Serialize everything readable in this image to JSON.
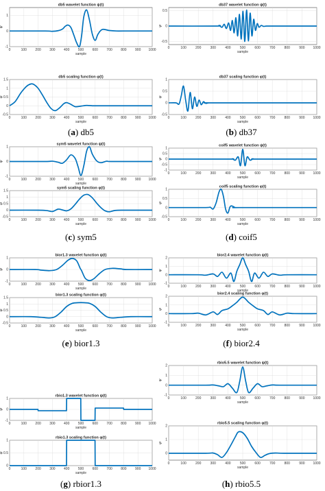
{
  "figure": {
    "captions": [
      {
        "letter": "a",
        "text": " db5"
      },
      {
        "letter": "b",
        "text": " db37"
      },
      {
        "letter": "c",
        "text": " sym5"
      },
      {
        "letter": "d",
        "text": " coif5"
      },
      {
        "letter": "e",
        "text": " bior1.3"
      },
      {
        "letter": "f",
        "text": " bior2.4"
      },
      {
        "letter": "g",
        "text": " rbior1.3"
      },
      {
        "letter": "h",
        "text": " rbio5.5"
      }
    ]
  },
  "colors": {
    "curve": "#0072bd",
    "grid": "#d9d9d9"
  },
  "chart_data": [
    {
      "id": "db5-wavelet",
      "type": "line",
      "title": "db5 wavelet function ψ(t)",
      "xlabel": "sample",
      "ylabel": "ψ",
      "xlim": [
        0,
        1000
      ],
      "ylim": [
        -1,
        1.5
      ],
      "xticks": [
        0,
        100,
        200,
        300,
        400,
        500,
        600,
        700,
        800,
        900,
        1000
      ],
      "yticks": [
        -1,
        0,
        1
      ],
      "x": [
        0,
        250,
        300,
        340,
        370,
        390,
        410,
        430,
        450,
        470,
        490,
        505,
        520,
        540,
        560,
        580,
        600,
        620,
        650,
        700,
        750,
        800,
        1000
      ],
      "y": [
        0,
        0,
        -0.02,
        0.02,
        0.12,
        0.3,
        0.38,
        0.22,
        -0.25,
        -0.75,
        -1.0,
        -0.3,
        0.9,
        1.35,
        0.7,
        -0.2,
        -0.6,
        -0.2,
        0.1,
        0.03,
        0,
        0,
        0
      ]
    },
    {
      "id": "db5-scaling",
      "type": "line",
      "title": "db5 scaling function φ(t)",
      "xlabel": "sample",
      "ylabel": "φ",
      "xlim": [
        0,
        1000
      ],
      "ylim": [
        -0.5,
        1.5
      ],
      "xticks": [
        0,
        100,
        200,
        300,
        400,
        500,
        600,
        700,
        800,
        900,
        1000
      ],
      "yticks": [
        -0.5,
        0,
        0.5,
        1,
        1.5
      ],
      "x": [
        0,
        40,
        80,
        120,
        150,
        170,
        200,
        230,
        260,
        290,
        320,
        350,
        380,
        400,
        430,
        460,
        500,
        540,
        580,
        620,
        700,
        1000
      ],
      "y": [
        0,
        0.25,
        0.75,
        1.12,
        1.25,
        1.22,
        1.0,
        0.62,
        0.2,
        -0.15,
        -0.28,
        -0.12,
        0.12,
        0.18,
        0.08,
        -0.05,
        -0.02,
        0.02,
        0,
        0,
        0,
        0
      ]
    },
    {
      "id": "db37-wavelet",
      "type": "line",
      "title": "db37 wavelet function ψ(t)",
      "xlabel": "sample",
      "ylabel": "ψ",
      "xlim": [
        0,
        1000
      ],
      "ylim": [
        -0.6,
        0.6
      ],
      "xticks": [
        0,
        100,
        200,
        300,
        400,
        500,
        600,
        700,
        800,
        900,
        1000
      ],
      "yticks": [
        -0.5,
        0,
        0.5
      ],
      "x": [
        0,
        320,
        340,
        360,
        375,
        390,
        405,
        418,
        430,
        442,
        454,
        466,
        478,
        490,
        502,
        514,
        526,
        538,
        550,
        562,
        574,
        586,
        598,
        610,
        625,
        640,
        660,
        700,
        1000
      ],
      "y": [
        0,
        0,
        0.02,
        -0.04,
        0.06,
        -0.08,
        0.1,
        -0.14,
        0.18,
        -0.22,
        0.27,
        -0.32,
        0.38,
        -0.42,
        0.48,
        -0.5,
        0.52,
        -0.48,
        0.42,
        -0.32,
        0.22,
        -0.14,
        0.08,
        -0.04,
        0.02,
        -0.01,
        0,
        0,
        0
      ]
    },
    {
      "id": "db37-scaling",
      "type": "line",
      "title": "db37 scaling function φ(t)",
      "xlabel": "sample",
      "ylabel": "φ",
      "xlim": [
        0,
        1000
      ],
      "ylim": [
        -0.5,
        1
      ],
      "xticks": [
        0,
        100,
        200,
        300,
        400,
        500,
        600,
        700,
        800,
        900,
        1000
      ],
      "yticks": [
        -0.5,
        0,
        0.5,
        1
      ],
      "x": [
        0,
        50,
        70,
        85,
        100,
        115,
        130,
        145,
        160,
        175,
        190,
        205,
        220,
        235,
        250,
        270,
        300,
        1000
      ],
      "y": [
        0,
        0,
        -0.05,
        0.3,
        0.72,
        0.1,
        -0.35,
        0.45,
        -0.25,
        0.25,
        -0.15,
        0.12,
        -0.08,
        0.05,
        -0.02,
        0,
        0,
        0
      ]
    },
    {
      "id": "sym5-wavelet",
      "type": "line",
      "title": "sym5 wavelet function ψ(t)",
      "xlabel": "sample",
      "ylabel": "ψ",
      "xlim": [
        0,
        1000
      ],
      "ylim": [
        -1,
        1
      ],
      "xticks": [
        0,
        100,
        200,
        300,
        400,
        500,
        600,
        700,
        800,
        900,
        1000
      ],
      "yticks": [
        -1,
        0,
        1
      ],
      "x": [
        0,
        250,
        300,
        340,
        370,
        400,
        430,
        460,
        480,
        500,
        520,
        540,
        560,
        580,
        610,
        640,
        680,
        720,
        1000
      ],
      "y": [
        0,
        0,
        0.02,
        -0.05,
        -0.12,
        0.12,
        0.45,
        0.2,
        -0.35,
        -0.95,
        -0.3,
        0.7,
        1.0,
        0.5,
        0.05,
        -0.08,
        0.02,
        0,
        0
      ]
    },
    {
      "id": "sym5-scaling",
      "type": "line",
      "title": "sym5 scaling function φ(t)",
      "xlabel": "sample",
      "ylabel": "φ",
      "xlim": [
        0,
        1000
      ],
      "ylim": [
        -0.5,
        1.5
      ],
      "xticks": [
        0,
        100,
        200,
        300,
        400,
        500,
        600,
        700,
        800,
        900,
        1000
      ],
      "yticks": [
        -0.5,
        0,
        0.5,
        1,
        1.5
      ],
      "x": [
        0,
        200,
        260,
        300,
        340,
        370,
        400,
        430,
        460,
        490,
        520,
        550,
        580,
        610,
        640,
        670,
        700,
        740,
        800,
        1000
      ],
      "y": [
        0,
        0,
        -0.03,
        -0.1,
        0.08,
        0.02,
        -0.05,
        0.1,
        0.45,
        0.85,
        1.15,
        1.2,
        0.95,
        0.55,
        0.2,
        -0.05,
        -0.12,
        -0.02,
        0,
        0
      ]
    },
    {
      "id": "coif5-wavelet",
      "type": "line",
      "title": "coif5 wavelet function ψ(t)",
      "xlabel": "sample",
      "ylabel": "ψ",
      "xlim": [
        0,
        1000
      ],
      "ylim": [
        -1,
        1
      ],
      "xticks": [
        0,
        100,
        200,
        300,
        400,
        500,
        600,
        700,
        800,
        900,
        1000
      ],
      "yticks": [
        -1,
        -0.5,
        0,
        0.5,
        1
      ],
      "x": [
        0,
        400,
        430,
        450,
        470,
        485,
        500,
        515,
        530,
        550,
        570,
        600,
        1000
      ],
      "y": [
        0,
        0,
        0.02,
        -0.1,
        0.2,
        -0.6,
        0.9,
        -0.6,
        0.2,
        -0.1,
        0.02,
        0,
        0
      ]
    },
    {
      "id": "coif5-scaling",
      "type": "line",
      "title": "coif5 scaling function φ(t)",
      "xlabel": "sample",
      "ylabel": "φ",
      "xlim": [
        0,
        1000
      ],
      "ylim": [
        -0.5,
        1
      ],
      "xticks": [
        0,
        100,
        200,
        300,
        400,
        500,
        600,
        700,
        800,
        900,
        1000
      ],
      "yticks": [
        -0.5,
        0,
        0.5,
        1
      ],
      "x": [
        0,
        250,
        280,
        300,
        320,
        340,
        355,
        370,
        385,
        400,
        415,
        430,
        450,
        480,
        1000
      ],
      "y": [
        0,
        0,
        0.02,
        -0.08,
        0.25,
        0.85,
        1.0,
        0.6,
        -0.1,
        -0.3,
        0.05,
        0.08,
        0,
        0,
        0
      ]
    },
    {
      "id": "bior13-wavelet",
      "type": "line",
      "title": "bior1.3 wavelet function ψ(t)",
      "xlabel": "sample",
      "ylabel": "ψ",
      "xlim": [
        0,
        1000
      ],
      "ylim": [
        -1,
        1
      ],
      "xticks": [
        0,
        100,
        200,
        300,
        400,
        500,
        600,
        700,
        800,
        900,
        1000
      ],
      "yticks": [
        -1,
        0,
        1
      ],
      "x": [
        0,
        180,
        220,
        280,
        330,
        370,
        410,
        440,
        470,
        495,
        500,
        505,
        530,
        560,
        590,
        630,
        670,
        720,
        780,
        820,
        1000
      ],
      "y": [
        0,
        0,
        -0.05,
        -0.1,
        0.0,
        0.35,
        0.8,
        0.95,
        0.75,
        0.1,
        0,
        -0.1,
        -0.75,
        -0.95,
        -0.8,
        -0.35,
        0.0,
        0.1,
        0.05,
        0,
        0
      ]
    },
    {
      "id": "bior13-scaling",
      "type": "line",
      "title": "bior1.3 scaling function φ(t)",
      "xlabel": "sample",
      "ylabel": "φ",
      "xlim": [
        0,
        1000
      ],
      "ylim": [
        -0.5,
        1.5
      ],
      "xticks": [
        0,
        100,
        200,
        300,
        400,
        500,
        600,
        700,
        800,
        900,
        1000
      ],
      "yticks": [
        -0.5,
        0,
        0.5,
        1,
        1.5
      ],
      "x": [
        0,
        150,
        220,
        280,
        320,
        360,
        400,
        440,
        480,
        520,
        560,
        600,
        640,
        680,
        720,
        780,
        850,
        1000
      ],
      "y": [
        0,
        0,
        -0.05,
        -0.1,
        0.0,
        0.35,
        0.8,
        1.05,
        1.1,
        1.1,
        1.05,
        0.8,
        0.35,
        0.0,
        -0.1,
        -0.05,
        0,
        0
      ]
    },
    {
      "id": "bior24-wavelet",
      "type": "line",
      "title": "bior2.4 wavelet function ψ(t)",
      "xlabel": "sample",
      "ylabel": "ψ",
      "xlim": [
        0,
        1000
      ],
      "ylim": [
        -1,
        2
      ],
      "xticks": [
        0,
        100,
        200,
        300,
        400,
        500,
        600,
        700,
        800,
        900,
        1000
      ],
      "yticks": [
        -1,
        0,
        1,
        2
      ],
      "x": [
        0,
        200,
        250,
        300,
        330,
        360,
        390,
        420,
        440,
        460,
        480,
        500,
        520,
        540,
        560,
        580,
        610,
        640,
        670,
        700,
        750,
        800,
        1000
      ],
      "y": [
        0,
        0,
        -0.05,
        0.1,
        -0.2,
        0.3,
        -0.4,
        0.2,
        -0.8,
        0.4,
        1.2,
        2.0,
        1.2,
        0.4,
        -0.8,
        0.2,
        -0.4,
        0.3,
        -0.2,
        0.1,
        -0.05,
        0,
        0
      ]
    },
    {
      "id": "bior24-scaling",
      "type": "line",
      "title": "bior2.4 scaling function φ(t)",
      "xlabel": "sample",
      "ylabel": "φ",
      "xlim": [
        0,
        1000
      ],
      "ylim": [
        -1,
        2
      ],
      "xticks": [
        0,
        100,
        200,
        300,
        400,
        500,
        600,
        700,
        800,
        900,
        1000
      ],
      "yticks": [
        -1,
        0,
        1,
        2
      ],
      "x": [
        0,
        150,
        200,
        250,
        300,
        330,
        360,
        400,
        430,
        460,
        500,
        540,
        570,
        600,
        640,
        670,
        700,
        750,
        800,
        850,
        1000
      ],
      "y": [
        0,
        0,
        0.05,
        -0.15,
        0.2,
        -0.1,
        0.35,
        0.55,
        0.9,
        1.3,
        1.9,
        1.3,
        0.9,
        0.55,
        0.35,
        -0.1,
        0.2,
        -0.15,
        0.05,
        0,
        0
      ]
    },
    {
      "id": "rbio13-wavelet",
      "type": "line",
      "title": "rbio1.3 wavelet function ψ(t)",
      "xlabel": "sample",
      "ylabel": "ψ",
      "xlim": [
        0,
        1000
      ],
      "ylim": [
        -1,
        1
      ],
      "xticks": [
        0,
        100,
        200,
        300,
        400,
        500,
        600,
        700,
        800,
        900,
        1000
      ],
      "yticks": [
        -1,
        0,
        1
      ],
      "x": [
        0,
        199,
        200,
        399,
        400,
        499,
        500,
        599,
        600,
        799,
        800,
        1000
      ],
      "y": [
        0,
        0,
        -0.12,
        -0.12,
        1,
        1,
        -1,
        -1,
        0.12,
        0.12,
        0,
        0
      ]
    },
    {
      "id": "rbio13-scaling",
      "type": "line",
      "title": "rbio1.3 scaling function φ(t)",
      "xlabel": "sample",
      "ylabel": "φ",
      "xlim": [
        0,
        1000
      ],
      "ylim": [
        0,
        1
      ],
      "xticks": [
        0,
        100,
        200,
        300,
        400,
        500,
        600,
        700,
        800,
        900,
        1000
      ],
      "yticks": [
        0,
        0.5,
        1
      ],
      "x": [
        0,
        399,
        400,
        599,
        600,
        1000
      ],
      "y": [
        0,
        0,
        1,
        1,
        0,
        0
      ]
    },
    {
      "id": "rbio55-wavelet",
      "type": "line",
      "title": "rbio5.5 wavelet function ψ(t)",
      "xlabel": "sample",
      "ylabel": "ψ",
      "xlim": [
        0,
        1000
      ],
      "ylim": [
        -1,
        2
      ],
      "xticks": [
        0,
        100,
        200,
        300,
        400,
        500,
        600,
        700,
        800,
        900,
        1000
      ],
      "yticks": [
        -1,
        0,
        1,
        2
      ],
      "x": [
        0,
        250,
        300,
        340,
        370,
        400,
        430,
        460,
        480,
        500,
        520,
        540,
        570,
        600,
        630,
        660,
        700,
        750,
        1000
      ],
      "y": [
        0,
        0,
        0.02,
        -0.08,
        -0.15,
        0.15,
        -0.3,
        -0.75,
        0.4,
        1.85,
        0.4,
        -0.75,
        -0.3,
        0.15,
        -0.15,
        -0.08,
        0.02,
        0,
        0
      ]
    },
    {
      "id": "rbio55-scaling",
      "type": "line",
      "title": "rbio5.5 scaling function φ(t)",
      "xlabel": "sample",
      "ylabel": "φ",
      "xlim": [
        0,
        1000
      ],
      "ylim": [
        -0.5,
        2
      ],
      "xticks": [
        0,
        100,
        200,
        300,
        400,
        500,
        600,
        700,
        800,
        900,
        1000
      ],
      "yticks": [
        0,
        1,
        2
      ],
      "x": [
        0,
        250,
        300,
        330,
        360,
        390,
        420,
        450,
        470,
        500,
        530,
        560,
        590,
        620,
        650,
        680,
        720,
        780,
        1000
      ],
      "y": [
        0,
        0,
        0.02,
        -0.1,
        -0.3,
        0.05,
        0.6,
        1.2,
        1.55,
        1.5,
        1.1,
        0.5,
        0.05,
        -0.3,
        -0.15,
        -0.02,
        0.02,
        0,
        0
      ]
    }
  ]
}
